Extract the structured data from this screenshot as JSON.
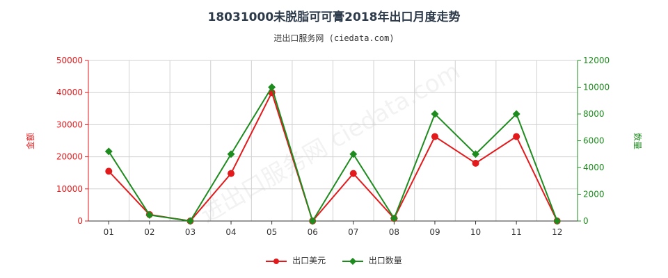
{
  "title": "18031000未脱脂可可膏2018年出口月度走势",
  "subtitle": "进出口服务网 (ciedata.com)",
  "watermark": "进出口服务网 ciedata.com",
  "colors": {
    "amount": "#e31a1c",
    "quantity": "#1e8b1e",
    "grid": "#d0d0d0"
  },
  "legend": {
    "amount_label": "出口美元",
    "quantity_label": "出口数量"
  },
  "chart_data": {
    "type": "line",
    "categories": [
      "01",
      "02",
      "03",
      "04",
      "05",
      "06",
      "07",
      "08",
      "09",
      "10",
      "11",
      "12"
    ],
    "y_left": {
      "label": "金额",
      "ticks": [
        "0",
        "10000",
        "20000",
        "30000",
        "40000",
        "50000"
      ],
      "range": [
        0,
        50000
      ]
    },
    "y_right": {
      "label": "数量",
      "ticks": [
        "0",
        "2000",
        "4000",
        "6000",
        "8000",
        "10000",
        "12000"
      ],
      "range": [
        0,
        12000
      ]
    },
    "grid": true,
    "legend_position": "bottom",
    "series": [
      {
        "name": "出口美元",
        "axis": "left",
        "color": "#e31a1c",
        "marker": "circle",
        "values": [
          15500,
          2000,
          0,
          14800,
          40000,
          0,
          14800,
          800,
          26300,
          18000,
          26300,
          0
        ]
      },
      {
        "name": "出口数量",
        "axis": "right",
        "color": "#1e8b1e",
        "marker": "diamond",
        "values": [
          5200,
          450,
          0,
          5000,
          10000,
          0,
          5000,
          200,
          8000,
          5000,
          8000,
          0
        ]
      }
    ]
  }
}
